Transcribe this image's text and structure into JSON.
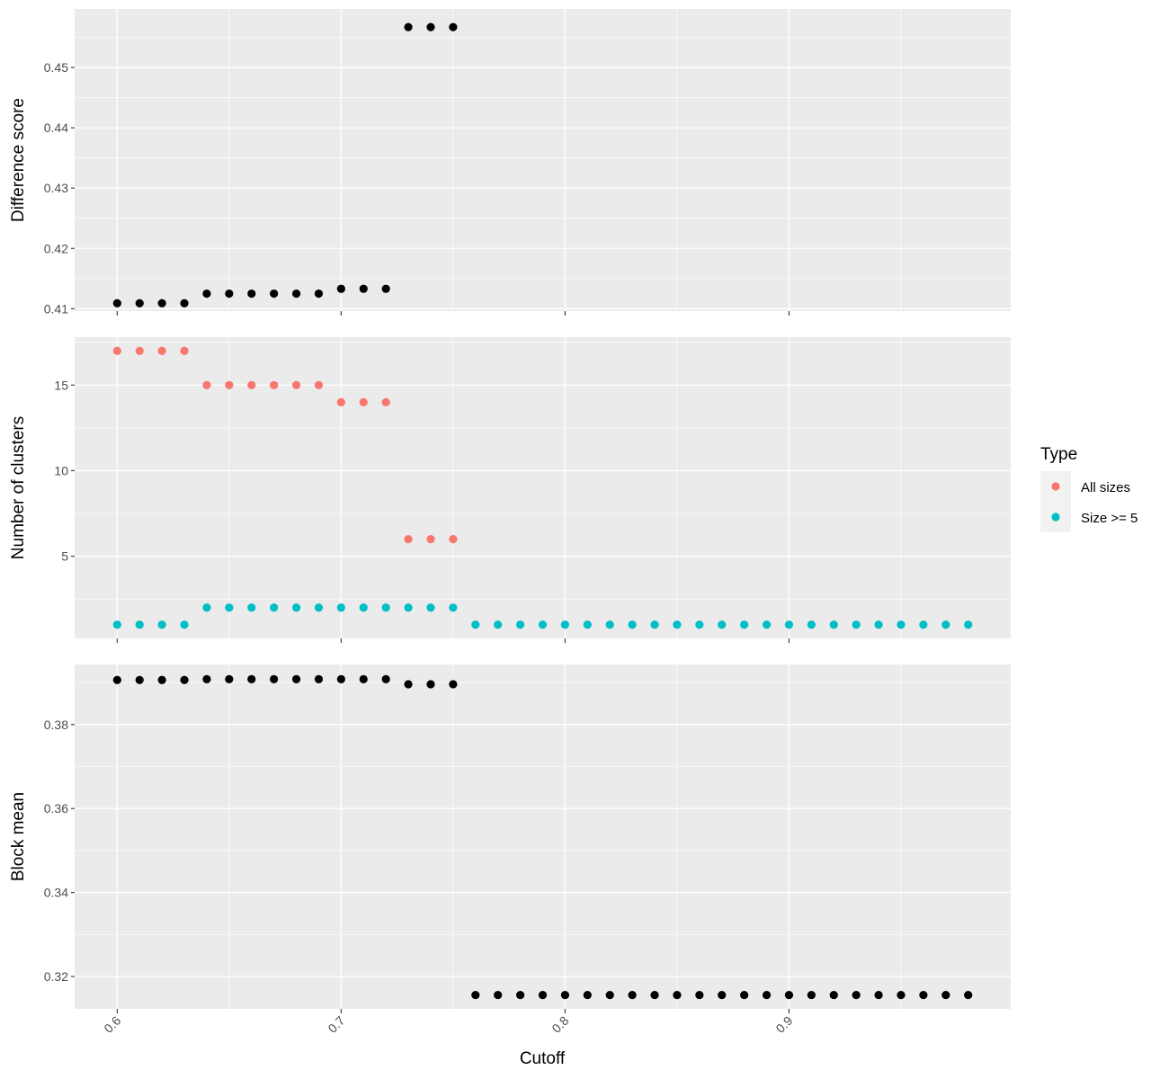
{
  "chart_data": {
    "type": "scatter",
    "xlabel": "Cutoff",
    "xlim": [
      0.581,
      0.999
    ],
    "x_ticks": [
      0.6,
      0.7,
      0.8,
      0.9
    ],
    "x_tick_labels": [
      "0.6",
      "0.7",
      "0.8",
      "0.9"
    ],
    "grid": true,
    "legend": {
      "title": "Type",
      "placement": "right",
      "entries": [
        {
          "label": "All sizes",
          "color": "#F8766D"
        },
        {
          "label": "Size >= 5",
          "color": "#00BFC4"
        }
      ]
    },
    "panels": [
      {
        "ylabel": "Difference score",
        "ylim": [
          0.4096,
          0.4597
        ],
        "y_ticks": [
          0.41,
          0.42,
          0.43,
          0.44,
          0.45
        ],
        "y_tick_labels": [
          "0.41",
          "0.42",
          "0.43",
          "0.44",
          "0.45"
        ],
        "series": [
          {
            "color": "#000000",
            "x": [
              0.6,
              0.61,
              0.62,
              0.63,
              0.64,
              0.65,
              0.66,
              0.67,
              0.68,
              0.69,
              0.7,
              0.71,
              0.72,
              0.73,
              0.74,
              0.75
            ],
            "y": [
              0.4109,
              0.4109,
              0.4109,
              0.4109,
              0.4125,
              0.4125,
              0.4125,
              0.4125,
              0.4125,
              0.4125,
              0.4133,
              0.4133,
              0.4133,
              0.4567,
              0.4567,
              0.4567
            ]
          }
        ]
      },
      {
        "ylabel": "Number of clusters",
        "ylim": [
          0.2,
          17.8
        ],
        "y_ticks": [
          5,
          10,
          15
        ],
        "y_tick_labels": [
          "5",
          "10",
          "15"
        ],
        "series": [
          {
            "name": "All sizes",
            "color": "#F8766D",
            "x": [
              0.6,
              0.61,
              0.62,
              0.63,
              0.64,
              0.65,
              0.66,
              0.67,
              0.68,
              0.69,
              0.7,
              0.71,
              0.72,
              0.73,
              0.74,
              0.75
            ],
            "y": [
              17,
              17,
              17,
              17,
              15,
              15,
              15,
              15,
              15,
              15,
              14,
              14,
              14,
              6,
              6,
              6
            ]
          },
          {
            "name": "Size >= 5",
            "color": "#00BFC4",
            "x": [
              0.6,
              0.61,
              0.62,
              0.63,
              0.64,
              0.65,
              0.66,
              0.67,
              0.68,
              0.69,
              0.7,
              0.71,
              0.72,
              0.73,
              0.74,
              0.75,
              0.76,
              0.77,
              0.78,
              0.79,
              0.8,
              0.81,
              0.82,
              0.83,
              0.84,
              0.85,
              0.86,
              0.87,
              0.88,
              0.89,
              0.9,
              0.91,
              0.92,
              0.93,
              0.94,
              0.95,
              0.96,
              0.97,
              0.98
            ],
            "y": [
              1,
              1,
              1,
              1,
              2,
              2,
              2,
              2,
              2,
              2,
              2,
              2,
              2,
              2,
              2,
              2,
              1,
              1,
              1,
              1,
              1,
              1,
              1,
              1,
              1,
              1,
              1,
              1,
              1,
              1,
              1,
              1,
              1,
              1,
              1,
              1,
              1,
              1,
              1
            ]
          }
        ]
      },
      {
        "ylabel": "Block mean",
        "ylim": [
          0.3123,
          0.3943
        ],
        "y_ticks": [
          0.32,
          0.34,
          0.36,
          0.38
        ],
        "y_tick_labels": [
          "0.32",
          "0.34",
          "0.36",
          "0.38"
        ],
        "series": [
          {
            "color": "#000000",
            "x": [
              0.6,
              0.61,
              0.62,
              0.63,
              0.64,
              0.65,
              0.66,
              0.67,
              0.68,
              0.69,
              0.7,
              0.71,
              0.72,
              0.73,
              0.74,
              0.75,
              0.76,
              0.77,
              0.78,
              0.79,
              0.8,
              0.81,
              0.82,
              0.83,
              0.84,
              0.85,
              0.86,
              0.87,
              0.88,
              0.89,
              0.9,
              0.91,
              0.92,
              0.93,
              0.94,
              0.95,
              0.96,
              0.97,
              0.98
            ],
            "y": [
              0.3906,
              0.3906,
              0.3906,
              0.3906,
              0.3908,
              0.3908,
              0.3908,
              0.3908,
              0.3908,
              0.3908,
              0.3908,
              0.3908,
              0.3908,
              0.3896,
              0.3896,
              0.3896,
              0.3156,
              0.3156,
              0.3156,
              0.3156,
              0.3156,
              0.3156,
              0.3156,
              0.3156,
              0.3156,
              0.3156,
              0.3156,
              0.3156,
              0.3156,
              0.3156,
              0.3156,
              0.3156,
              0.3156,
              0.3156,
              0.3156,
              0.3156,
              0.3156,
              0.3156,
              0.3156
            ]
          }
        ]
      }
    ]
  }
}
